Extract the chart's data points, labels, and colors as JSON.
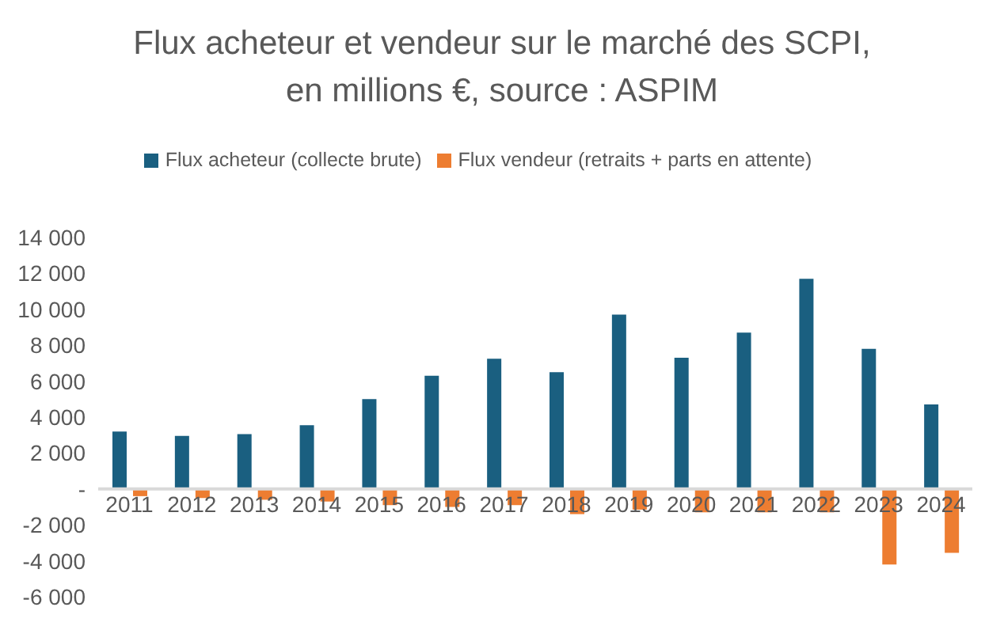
{
  "chart_data": {
    "type": "bar",
    "title": "Flux acheteur et vendeur sur le marché des SCPI,\nen millions €, source : ASPIM",
    "categories": [
      "2011",
      "2012",
      "2013",
      "2014",
      "2015",
      "2016",
      "2017",
      "2018",
      "2019",
      "2020",
      "2021",
      "2022",
      "2023",
      "2024"
    ],
    "series": [
      {
        "name": "Flux acheteur (collecte brute)",
        "color": "#1a5f80",
        "values": [
          3200,
          2950,
          3050,
          3550,
          5000,
          6300,
          7250,
          6500,
          9700,
          7300,
          8700,
          11700,
          7800,
          4700
        ]
      },
      {
        "name": "Flux vendeur (retraits + parts en attente)",
        "color": "#ed7d31",
        "values": [
          -400,
          -500,
          -600,
          -700,
          -900,
          -1000,
          -900,
          -1400,
          -1150,
          -1300,
          -1300,
          -1300,
          -4200,
          -3550
        ]
      }
    ],
    "ylim": [
      -6000,
      14000
    ],
    "yticks": [
      {
        "value": -6000,
        "label": "-6 000"
      },
      {
        "value": -4000,
        "label": "-4 000"
      },
      {
        "value": -2000,
        "label": "-2 000"
      },
      {
        "value": 0,
        "label": "-"
      },
      {
        "value": 2000,
        "label": "2 000"
      },
      {
        "value": 4000,
        "label": "4 000"
      },
      {
        "value": 6000,
        "label": "6 000"
      },
      {
        "value": 8000,
        "label": "8 000"
      },
      {
        "value": 10000,
        "label": "10 000"
      },
      {
        "value": 12000,
        "label": "12 000"
      },
      {
        "value": 14000,
        "label": "14 000"
      }
    ],
    "grid": false,
    "legend": "top"
  }
}
